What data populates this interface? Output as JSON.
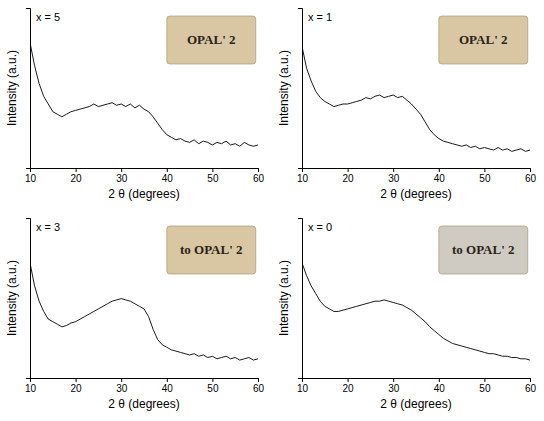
{
  "chart_data": [
    {
      "type": "line",
      "title": "x = 5",
      "x_label": "2 θ (degrees)",
      "y_label": "Intensity (a.u.)",
      "annotation": "OPAL' 2",
      "x": [
        10,
        11,
        12,
        13,
        14,
        15,
        16,
        17,
        18,
        19,
        20,
        21,
        22,
        23,
        24,
        25,
        26,
        27,
        28,
        29,
        30,
        31,
        32,
        33,
        34,
        35,
        36,
        37,
        38,
        39,
        40,
        41,
        42,
        43,
        44,
        45,
        46,
        47,
        48,
        49,
        50,
        51,
        52,
        53,
        54,
        55,
        56,
        57,
        58,
        59,
        60
      ],
      "values": [
        98,
        80,
        66,
        56,
        50,
        44,
        42,
        40,
        42,
        44,
        45,
        46,
        47,
        48,
        50,
        48,
        49,
        50,
        51,
        49,
        50,
        48,
        50,
        47,
        49,
        46,
        44,
        40,
        35,
        30,
        26,
        24,
        22,
        23,
        21,
        20,
        22,
        19,
        21,
        20,
        18,
        20,
        19,
        21,
        18,
        19,
        17,
        20,
        18,
        17,
        18
      ],
      "color": "#000000",
      "xlim": [
        10,
        60
      ],
      "xticks": [
        10,
        20,
        30,
        40,
        50,
        60
      ],
      "ylim": [
        0,
        125
      ],
      "tick_labels": "x"
    },
    {
      "type": "line",
      "title": "x = 1",
      "x_label": "2 θ (degrees)",
      "y_label": "Intensity (a.u.)",
      "annotation": "OPAL' 2",
      "x": [
        10,
        11,
        12,
        13,
        14,
        15,
        16,
        17,
        18,
        19,
        20,
        21,
        22,
        23,
        24,
        25,
        26,
        27,
        28,
        29,
        30,
        31,
        32,
        33,
        34,
        35,
        36,
        37,
        38,
        39,
        40,
        41,
        42,
        43,
        44,
        45,
        46,
        47,
        48,
        49,
        50,
        51,
        52,
        53,
        54,
        55,
        56,
        57,
        58,
        59,
        60
      ],
      "values": [
        95,
        78,
        68,
        60,
        55,
        52,
        50,
        48,
        49,
        50,
        50,
        51,
        52,
        53,
        55,
        54,
        56,
        57,
        55,
        56,
        57,
        55,
        56,
        53,
        50,
        46,
        42,
        36,
        30,
        26,
        23,
        21,
        20,
        19,
        18,
        17,
        18,
        16,
        17,
        15,
        16,
        15,
        14,
        16,
        14,
        15,
        13,
        14,
        15,
        13,
        14
      ],
      "color": "#000000",
      "xlim": [
        10,
        60
      ],
      "xticks": [
        10,
        20,
        30,
        40,
        50,
        60
      ],
      "ylim": [
        0,
        125
      ],
      "tick_labels": "x"
    },
    {
      "type": "line",
      "title": "x = 3",
      "x_label": "2 θ (degrees)",
      "y_label": "Intensity (a.u.)",
      "annotation": "to OPAL' 2",
      "x": [
        10,
        11,
        12,
        13,
        14,
        15,
        16,
        17,
        18,
        19,
        20,
        21,
        22,
        23,
        24,
        25,
        26,
        27,
        28,
        29,
        30,
        31,
        32,
        33,
        34,
        35,
        36,
        37,
        38,
        39,
        40,
        41,
        42,
        43,
        44,
        45,
        46,
        47,
        48,
        49,
        50,
        51,
        52,
        53,
        54,
        55,
        56,
        57,
        58,
        59,
        60
      ],
      "values": [
        90,
        72,
        60,
        52,
        46,
        44,
        42,
        40,
        41,
        43,
        44,
        46,
        48,
        50,
        52,
        54,
        56,
        58,
        60,
        61,
        62,
        61,
        60,
        58,
        56,
        54,
        48,
        38,
        30,
        26,
        24,
        22,
        21,
        20,
        19,
        18,
        19,
        17,
        18,
        16,
        17,
        15,
        16,
        17,
        15,
        16,
        14,
        15,
        16,
        14,
        15
      ],
      "color": "#000000",
      "xlim": [
        10,
        60
      ],
      "xticks": [
        10,
        20,
        30,
        40,
        50,
        60
      ],
      "ylim": [
        0,
        125
      ],
      "tick_labels": "x"
    },
    {
      "type": "line",
      "title": "x = 0",
      "x_label": "2 θ (degrees)",
      "y_label": "Intensity (a.u.)",
      "annotation": "to OPAL' 2",
      "x": [
        10,
        11,
        12,
        13,
        14,
        15,
        16,
        17,
        18,
        19,
        20,
        21,
        22,
        23,
        24,
        25,
        26,
        27,
        28,
        29,
        30,
        31,
        32,
        33,
        34,
        35,
        36,
        37,
        38,
        39,
        40,
        41,
        42,
        43,
        44,
        45,
        46,
        47,
        48,
        49,
        50,
        51,
        52,
        53,
        54,
        55,
        56,
        57,
        58,
        59,
        60
      ],
      "values": [
        90,
        80,
        72,
        66,
        60,
        56,
        54,
        52,
        52,
        53,
        54,
        55,
        56,
        57,
        58,
        59,
        60,
        60,
        61,
        60,
        59,
        58,
        57,
        55,
        53,
        50,
        47,
        44,
        40,
        37,
        34,
        31,
        29,
        27,
        26,
        25,
        24,
        23,
        22,
        21,
        20,
        19,
        19,
        18,
        17,
        17,
        16,
        16,
        15,
        15,
        14
      ],
      "color": "#000000",
      "xlim": [
        10,
        60
      ],
      "xticks": [
        10,
        20,
        30,
        40,
        50,
        60
      ],
      "ylim": [
        0,
        125
      ],
      "tick_labels": "x"
    }
  ]
}
